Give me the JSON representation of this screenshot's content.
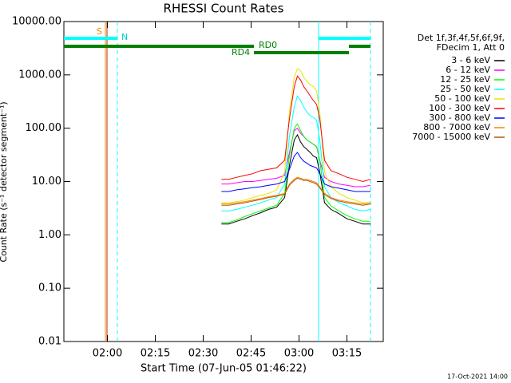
{
  "chart_data": {
    "type": "line",
    "title": "RHESSI Count Rates",
    "x_label": "Start Time (07-Jun-05 01:46:22)",
    "y_label": "Count Rate (s⁻¹ detector segment⁻¹)",
    "legend_header": [
      "Det 1f,3f,4f,5f,6f,9f,",
      "FDecim 1, Att 0"
    ],
    "footer": "17-Oct-2021 14:00",
    "annotations": [
      "S",
      "N",
      "RD0",
      "RD4"
    ],
    "log_y": true,
    "xlim": [
      106.37,
      206.37
    ],
    "xticks": [
      {
        "value": 120,
        "label": "02:00"
      },
      {
        "value": 135,
        "label": "02:15"
      },
      {
        "value": 150,
        "label": "02:30"
      },
      {
        "value": 165,
        "label": "02:45"
      },
      {
        "value": 180,
        "label": "03:00"
      },
      {
        "value": 195,
        "label": "03:15"
      }
    ],
    "ylim": [
      0.01,
      10000
    ],
    "yticks": [
      {
        "value": 10000,
        "label": "10000.00"
      },
      {
        "value": 1000,
        "label": "1000.00"
      },
      {
        "value": 100,
        "label": "100.00"
      },
      {
        "value": 10,
        "label": "10.00"
      },
      {
        "value": 1,
        "label": "1.00"
      },
      {
        "value": 0.1,
        "label": "0.10"
      },
      {
        "value": 0.01,
        "label": "0.01"
      }
    ],
    "x": [
      155.7,
      158,
      160.5,
      163,
      165.5,
      168,
      170.5,
      173,
      175.5,
      177,
      178.5,
      179.5,
      180.5,
      181.5,
      182.5,
      183.5,
      184.5,
      185.5,
      186.5,
      188,
      190,
      192.5,
      195,
      197.5,
      200,
      202.4
    ],
    "series": [
      {
        "name": "3 - 6 keV",
        "color": "#000000",
        "values": [
          1.6,
          1.6,
          1.8,
          2,
          2.3,
          2.6,
          3,
          3.3,
          5,
          20,
          60,
          75,
          55,
          45,
          40,
          35,
          30,
          28,
          15,
          4,
          3,
          2.5,
          2,
          1.8,
          1.6,
          1.6
        ]
      },
      {
        "name": "6 - 12 keV",
        "color": "#ff00ff",
        "values": [
          9,
          9,
          9.5,
          10,
          10,
          10.5,
          11,
          11.5,
          13,
          35,
          90,
          100,
          80,
          70,
          60,
          55,
          50,
          45,
          25,
          12,
          10,
          9,
          8.5,
          8,
          8,
          8.5
        ]
      },
      {
        "name": "12 - 25 keV",
        "color": "#00ff00",
        "values": [
          1.7,
          1.7,
          1.9,
          2.2,
          2.5,
          2.8,
          3.2,
          3.6,
          6,
          30,
          100,
          120,
          90,
          70,
          60,
          55,
          50,
          45,
          25,
          5,
          3.5,
          2.8,
          2.3,
          2,
          1.8,
          1.8
        ]
      },
      {
        "name": "25 - 50 keV",
        "color": "#00ffff",
        "values": [
          2.8,
          2.8,
          3,
          3.3,
          3.6,
          4,
          4.5,
          5,
          9,
          70,
          250,
          400,
          330,
          250,
          200,
          170,
          160,
          140,
          60,
          8,
          5,
          4,
          3.5,
          3,
          2.8,
          3
        ]
      },
      {
        "name": "50 - 100 keV",
        "color": "#e6e600",
        "values": [
          4,
          4,
          4.2,
          4.5,
          5,
          5.5,
          6,
          7,
          15,
          200,
          900,
          1300,
          1200,
          900,
          750,
          650,
          600,
          500,
          200,
          15,
          8,
          6,
          5,
          4.5,
          4,
          4
        ]
      },
      {
        "name": "100 - 300 keV",
        "color": "#ff0000",
        "values": [
          11,
          11,
          12,
          13,
          14,
          16,
          17,
          18,
          25,
          150,
          600,
          950,
          800,
          600,
          500,
          400,
          330,
          280,
          150,
          25,
          16,
          14,
          12,
          11,
          10,
          11
        ]
      },
      {
        "name": "300 - 800 keV",
        "color": "#0000ff",
        "values": [
          6.5,
          6.5,
          7,
          7.3,
          7.7,
          8,
          8.5,
          9,
          10,
          17,
          30,
          35,
          28,
          24,
          22,
          20,
          19,
          18,
          14,
          9,
          8,
          7.5,
          7,
          6.5,
          6.5,
          6.5
        ]
      },
      {
        "name": "800 - 7000 keV",
        "color": "#ff8000",
        "values": [
          3.8,
          3.8,
          4,
          4.2,
          4.5,
          4.8,
          5.2,
          5.5,
          6,
          9,
          11,
          12,
          11.5,
          11,
          11,
          10.5,
          10,
          9.5,
          8,
          6,
          5,
          4.5,
          4.2,
          4,
          3.8,
          4
        ]
      },
      {
        "name": "7000 - 15000 keV",
        "color": "#b35900",
        "values": [
          3.6,
          3.6,
          3.8,
          4,
          4.3,
          4.6,
          5,
          5.3,
          5.8,
          8.5,
          10.5,
          11.5,
          11,
          10.5,
          10.5,
          10,
          9.5,
          9,
          7.6,
          5.7,
          4.8,
          4.3,
          4,
          3.8,
          3.6,
          3.8
        ]
      }
    ]
  }
}
